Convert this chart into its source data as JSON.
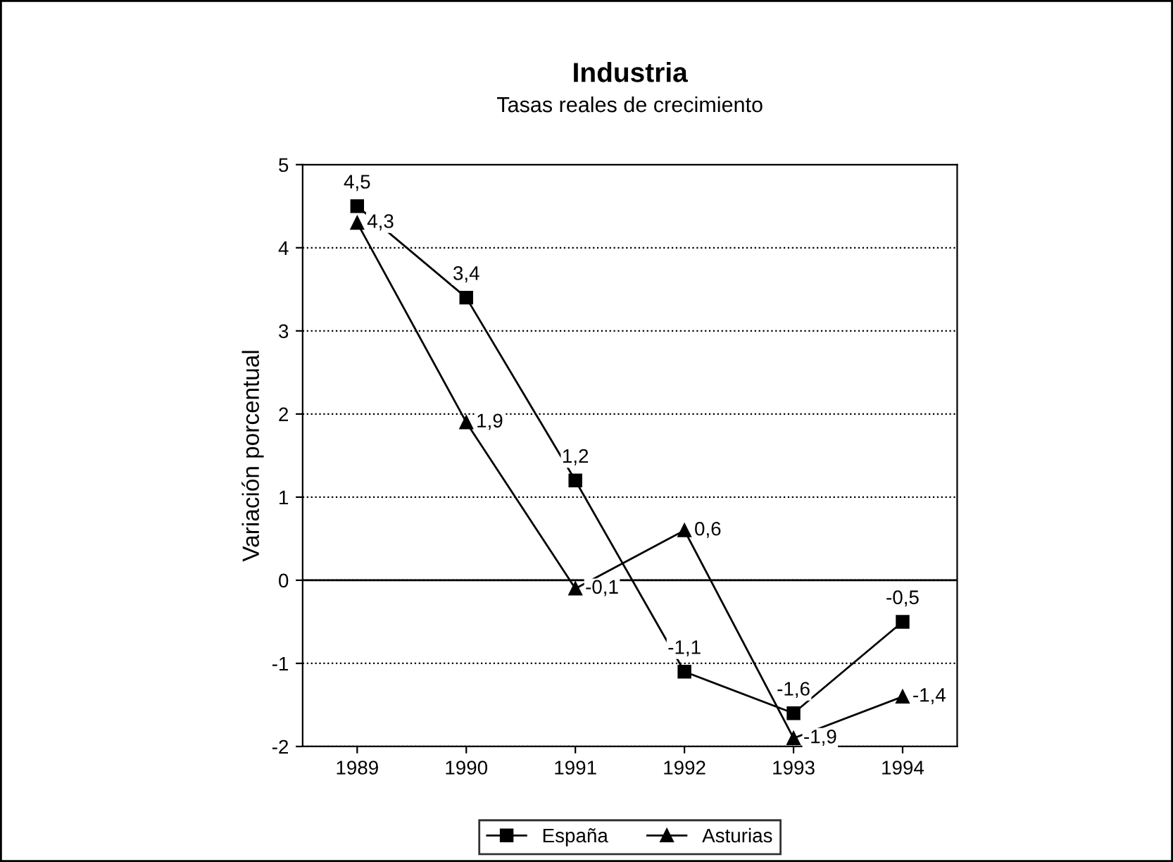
{
  "chart_data": {
    "type": "line",
    "title": "Industria",
    "subtitle": "Tasas reales de crecimiento",
    "ylabel": "Variación porcentual",
    "categories": [
      "1989",
      "1990",
      "1991",
      "1992",
      "1993",
      "1994"
    ],
    "series": [
      {
        "name": "España",
        "color": "#000000",
        "marker": "square",
        "values": [
          4.5,
          3.4,
          1.2,
          -1.1,
          -1.6,
          -0.5
        ],
        "value_labels": [
          "4,5",
          "3,4",
          "1,2",
          "-1,1",
          "-1,6",
          "-0,5"
        ]
      },
      {
        "name": "Asturias",
        "color": "#000000",
        "marker": "triangle",
        "values": [
          4.3,
          1.9,
          -0.1,
          0.6,
          -1.9,
          -1.4
        ],
        "value_labels": [
          "4,3",
          "1,9",
          "-0,1",
          "0,6",
          "-1,9",
          "-1,4"
        ]
      }
    ],
    "ylim": [
      -2,
      5
    ],
    "yticks": [
      -2,
      -1,
      0,
      1,
      2,
      3,
      4,
      5
    ],
    "grid": "y",
    "line_style": "solid",
    "legend": "bottom",
    "ref_lines": [
      {
        "axis": "y",
        "value": 0,
        "color": "#000000",
        "line_style": "solid"
      }
    ]
  }
}
